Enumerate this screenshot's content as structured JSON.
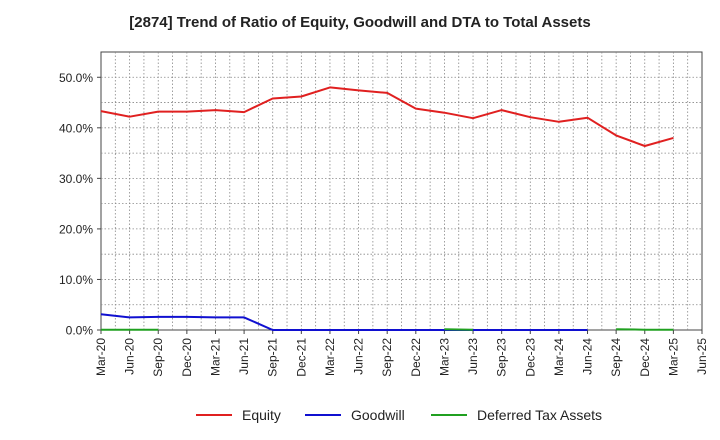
{
  "chart_data": {
    "type": "line",
    "title": "[2874]  Trend of Ratio of Equity, Goodwill and DTA to Total Assets",
    "xlabel": "",
    "ylabel": "",
    "ylim": [
      0,
      55
    ],
    "yticks": [
      0,
      10,
      20,
      30,
      40,
      50
    ],
    "ytick_labels": [
      "0.0%",
      "10.0%",
      "20.0%",
      "30.0%",
      "40.0%",
      "50.0%"
    ],
    "categories": [
      "Mar-20",
      "Jun-20",
      "Sep-20",
      "Dec-20",
      "Mar-21",
      "Jun-21",
      "Sep-21",
      "Dec-21",
      "Mar-22",
      "Jun-22",
      "Sep-22",
      "Dec-22",
      "Mar-23",
      "Jun-23",
      "Sep-23",
      "Dec-23",
      "Mar-24",
      "Jun-24",
      "Sep-24",
      "Dec-24",
      "Mar-25",
      "Jun-25"
    ],
    "grid": true,
    "legend_position": "bottom",
    "series": [
      {
        "name": "Equity",
        "color": "#e02020",
        "values": [
          43.3,
          42.2,
          43.2,
          43.2,
          43.5,
          43.1,
          45.8,
          46.2,
          48.0,
          47.4,
          46.9,
          43.8,
          43.0,
          41.9,
          43.5,
          42.1,
          41.2,
          42.0,
          38.5,
          36.4,
          38.0,
          null
        ]
      },
      {
        "name": "Goodwill",
        "color": "#1010d0",
        "values": [
          3.1,
          2.5,
          2.6,
          2.6,
          2.5,
          2.5,
          0.0,
          0.0,
          0.0,
          0.0,
          0.0,
          0.0,
          0.0,
          0.0,
          0.0,
          0.0,
          0.0,
          0.0,
          null,
          null,
          null,
          null
        ]
      },
      {
        "name": "Deferred Tax Assets",
        "color": "#20a020",
        "values": [
          0.05,
          0.05,
          0.05,
          null,
          null,
          null,
          null,
          null,
          null,
          null,
          null,
          null,
          0.15,
          0.05,
          null,
          null,
          null,
          null,
          0.15,
          0.05,
          0.05,
          null
        ]
      }
    ]
  }
}
